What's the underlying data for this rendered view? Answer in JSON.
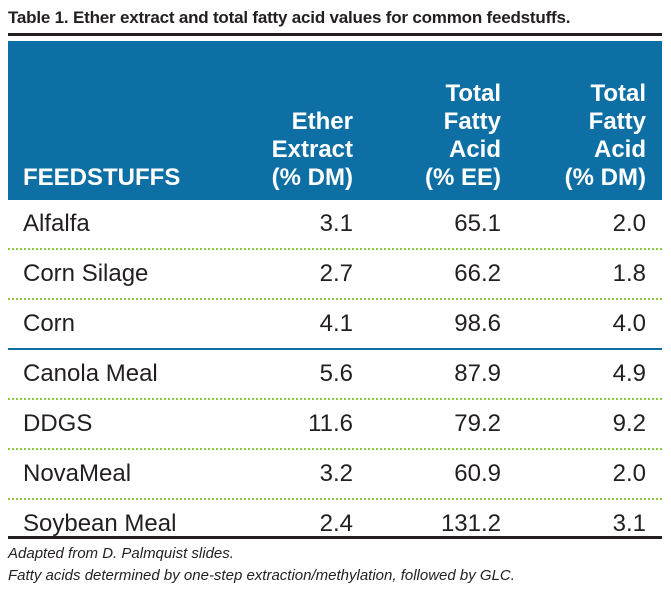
{
  "caption": "Table 1. Ether extract and total fatty acid values for common feedstuffs.",
  "header": {
    "feedstuffs": "FEEDSTUFFS",
    "ether_line1": "Ether",
    "ether_line2": "Extract",
    "ether_line3": "(% DM)",
    "tfa_ee_line1": "Total",
    "tfa_ee_line2": "Fatty",
    "tfa_ee_line3": "Acid",
    "tfa_ee_line4": "(% EE)",
    "tfa_dm_line1": "Total",
    "tfa_dm_line2": "Fatty",
    "tfa_dm_line3": "Acid",
    "tfa_dm_line4": "(% DM)"
  },
  "rows": [
    {
      "name": "Alfalfa",
      "ether": "3.1",
      "tfa_ee": "65.1",
      "tfa_dm": "2.0"
    },
    {
      "name": "Corn Silage",
      "ether": "2.7",
      "tfa_ee": "66.2",
      "tfa_dm": "1.8"
    },
    {
      "name": "Corn",
      "ether": "4.1",
      "tfa_ee": "98.6",
      "tfa_dm": "4.0"
    },
    {
      "name": "Canola Meal",
      "ether": "5.6",
      "tfa_ee": "87.9",
      "tfa_dm": "4.9"
    },
    {
      "name": "DDGS",
      "ether": "11.6",
      "tfa_ee": "79.2",
      "tfa_dm": "9.2"
    },
    {
      "name": "NovaMeal",
      "ether": "3.2",
      "tfa_ee": "60.9",
      "tfa_dm": "2.0"
    },
    {
      "name": "Soybean Meal",
      "ether": "2.4",
      "tfa_ee": "131.2",
      "tfa_dm": "3.1"
    }
  ],
  "notes": {
    "source": "Adapted from D. Palmquist slides.",
    "method": "Fatty acids determined by one-step extraction/methylation, followed by GLC."
  },
  "colors": {
    "header_bg": "#0d6fa3",
    "separator": "#8cc63f",
    "text": "#231f20"
  }
}
